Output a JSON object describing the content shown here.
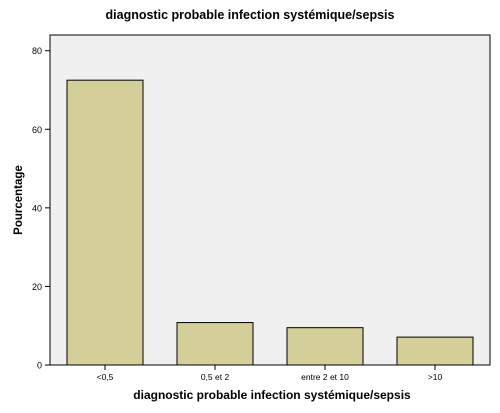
{
  "chart_data": {
    "type": "bar",
    "title": "diagnostic probable  infection systémique/sepsis",
    "xlabel": "diagnostic probable  infection systémique/sepsis",
    "ylabel": "Pourcentage",
    "categories": [
      "<0,5",
      "0,5 et 2",
      "entre 2 et 10",
      ">10"
    ],
    "values": [
      72.5,
      10.8,
      9.5,
      7.1
    ],
    "ylim": [
      0,
      84
    ],
    "yticks": [
      "0",
      "20",
      "40",
      "60",
      "80"
    ],
    "grid": false,
    "colors": {
      "bar_fill": "#d4cf98",
      "bar_stroke": "#000000",
      "plot_background": "#f0f0f0"
    }
  }
}
